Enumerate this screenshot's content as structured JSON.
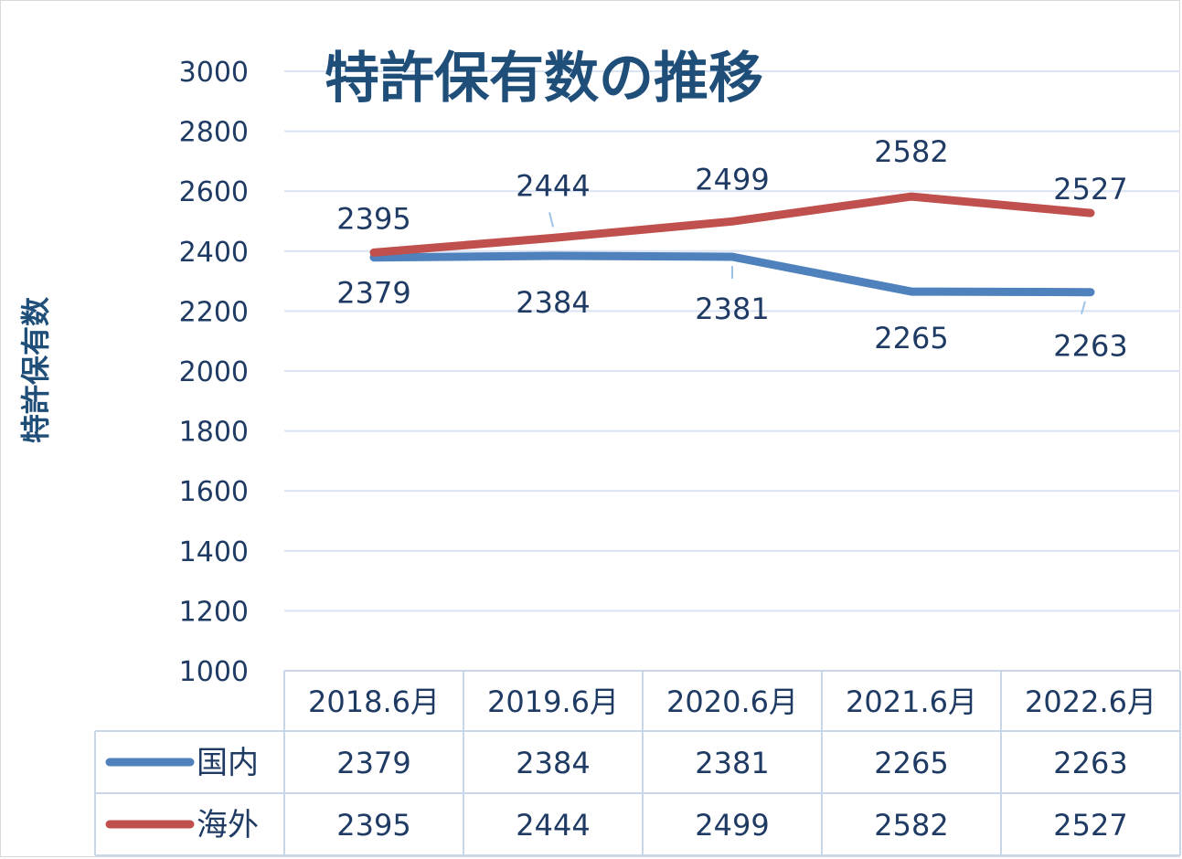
{
  "chart_data": {
    "type": "line",
    "title": "特許保有数の推移",
    "ylabel": "特許保有数",
    "xlabel": "",
    "ylim": [
      1000,
      3000
    ],
    "yticks": [
      1000,
      1200,
      1400,
      1600,
      1800,
      2000,
      2200,
      2400,
      2600,
      2800,
      3000
    ],
    "categories": [
      "2018.6月",
      "2019.6月",
      "2020.6月",
      "2021.6月",
      "2022.6月"
    ],
    "series": [
      {
        "name": "国内",
        "values": [
          2379,
          2384,
          2381,
          2265,
          2263
        ],
        "color": "#4f81bd"
      },
      {
        "name": "海外",
        "values": [
          2395,
          2444,
          2499,
          2582,
          2527
        ],
        "color": "#c0504d"
      }
    ],
    "grid": true,
    "legend": "data-table-bottom",
    "data_table": true,
    "data_labels": true
  }
}
